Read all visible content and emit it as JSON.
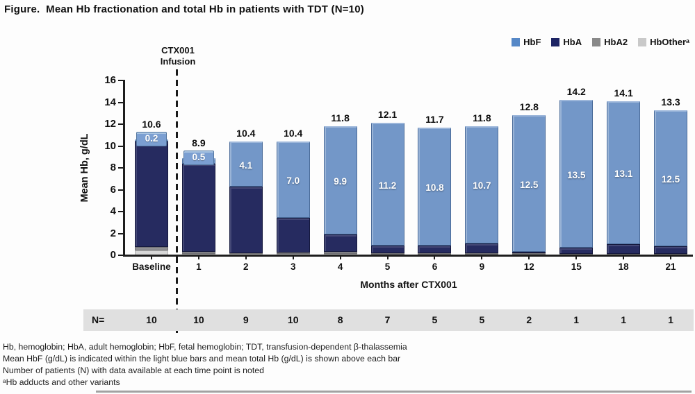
{
  "title": "Figure.  Mean Hb fractionation and total Hb in patients with TDT (N=10)",
  "legend": [
    {
      "label": "HbF",
      "color": "#5688c7"
    },
    {
      "label": "HbA",
      "color": "#1d2464"
    },
    {
      "label": "HbA2",
      "color": "#898989"
    },
    {
      "label": "HbOtherᵃ",
      "color": "#c9c9c9"
    }
  ],
  "annotation": {
    "line1": "CTX001",
    "line2": "Infusion"
  },
  "y_axis": {
    "label": "Mean Hb, g/dL",
    "ticks": [
      0,
      2,
      4,
      6,
      8,
      10,
      12,
      14,
      16
    ]
  },
  "x_axis": {
    "label": "Months after CTX001"
  },
  "n_row": {
    "label": "N=",
    "values": [
      "10",
      "10",
      "9",
      "10",
      "8",
      "7",
      "5",
      "5",
      "2",
      "1",
      "1",
      "1"
    ]
  },
  "footnotes": [
    "Hb, hemoglobin; HbA, adult hemoglobin; HbF, fetal hemoglobin; TDT, transfusion-dependent β-thalassemia",
    "Mean HbF (g/dL) is indicated within the light blue bars and mean total Hb (g/dL) is shown above each bar",
    "Number of patients (N) with data available at each time point is noted",
    "ᵃHb adducts and other variants"
  ],
  "chart_data": {
    "type": "bar",
    "subtype": "stacked",
    "title": "Mean Hb fractionation and total Hb in patients with TDT (N=10)",
    "categories": [
      "Baseline",
      "1",
      "2",
      "3",
      "4",
      "5",
      "6",
      "9",
      "12",
      "15",
      "18",
      "21"
    ],
    "series": [
      {
        "key": "hbother",
        "name": "HbOtherᵃ",
        "color": "#d7d7d7",
        "values": [
          0.45,
          0.15,
          0.1,
          0.1,
          0.1,
          0.05,
          0.05,
          0.05,
          0.05,
          0.04,
          0.04,
          0.04
        ]
      },
      {
        "key": "hba2",
        "name": "HbA2",
        "color": "#919195",
        "values": [
          0.3,
          0.2,
          0.1,
          0.15,
          0.2,
          0.15,
          0.15,
          0.15,
          0.15,
          0.06,
          0.06,
          0.06
        ]
      },
      {
        "key": "hba",
        "name": "HbA",
        "color": "#262b60",
        "values": [
          9.65,
          8.05,
          6.1,
          3.15,
          1.6,
          0.7,
          0.7,
          0.9,
          0.1,
          0.6,
          0.9,
          0.7
        ]
      },
      {
        "key": "hbf",
        "name": "HbF",
        "color": "#7397c8",
        "values": [
          0.2,
          0.5,
          4.1,
          7.0,
          9.9,
          11.2,
          10.8,
          10.7,
          12.5,
          13.5,
          13.1,
          12.5
        ]
      }
    ],
    "totals": [
      10.6,
      8.9,
      10.4,
      10.4,
      11.8,
      12.1,
      11.7,
      11.8,
      12.8,
      14.2,
      14.1,
      13.3
    ],
    "hbf_labels": [
      "0.2",
      "0.5",
      "4.1",
      "7.0",
      "9.9",
      "11.2",
      "10.8",
      "10.7",
      "12.5",
      "13.5",
      "13.1",
      "12.5"
    ],
    "hbf_label_style": [
      "chip",
      "chip",
      "inside",
      "inside",
      "inside",
      "inside",
      "inside",
      "inside",
      "inside",
      "inside",
      "inside",
      "inside"
    ],
    "xlabel": "Months after CTX001",
    "ylabel": "Mean Hb, g/dL",
    "ylim": [
      0,
      16
    ],
    "grid": false,
    "legend_position": "top-right"
  }
}
